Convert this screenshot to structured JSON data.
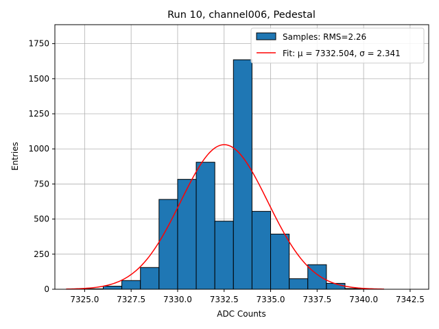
{
  "chart_data": {
    "type": "histogram",
    "title": "Run 10, channel006, Pedestal",
    "xlabel": "ADC Counts",
    "ylabel": "Entries",
    "xlim": [
      7323.4,
      7343.5
    ],
    "ylim": [
      0,
      1885
    ],
    "xticks": [
      7325.0,
      7327.5,
      7330.0,
      7332.5,
      7335.0,
      7337.5,
      7340.0,
      7342.5
    ],
    "xtick_labels": [
      "7325.0",
      "7327.5",
      "7330.0",
      "7332.5",
      "7335.0",
      "7337.5",
      "7340.0",
      "7342.5"
    ],
    "yticks": [
      0,
      250,
      500,
      750,
      1000,
      1250,
      1500,
      1750
    ],
    "ytick_labels": [
      "0",
      "250",
      "500",
      "750",
      "1000",
      "1250",
      "1500",
      "1750"
    ],
    "grid": true,
    "bar_color": "#1f77b4",
    "fit_color": "#ff0000",
    "bins": [
      {
        "x0": 7324.0,
        "x1": 7325.0,
        "value": 0
      },
      {
        "x0": 7325.0,
        "x1": 7326.0,
        "value": 3
      },
      {
        "x0": 7326.0,
        "x1": 7327.0,
        "value": 22
      },
      {
        "x0": 7327.0,
        "x1": 7328.0,
        "value": 62
      },
      {
        "x0": 7328.0,
        "x1": 7329.0,
        "value": 155
      },
      {
        "x0": 7329.0,
        "x1": 7330.0,
        "value": 640
      },
      {
        "x0": 7330.0,
        "x1": 7331.0,
        "value": 783
      },
      {
        "x0": 7331.0,
        "x1": 7332.0,
        "value": 905
      },
      {
        "x0": 7332.0,
        "x1": 7333.0,
        "value": 485
      },
      {
        "x0": 7333.0,
        "x1": 7334.0,
        "value": 1635
      },
      {
        "x0": 7334.0,
        "x1": 7335.0,
        "value": 555
      },
      {
        "x0": 7335.0,
        "x1": 7336.0,
        "value": 393
      },
      {
        "x0": 7336.0,
        "x1": 7337.0,
        "value": 75
      },
      {
        "x0": 7337.0,
        "x1": 7338.0,
        "value": 175
      },
      {
        "x0": 7338.0,
        "x1": 7339.0,
        "value": 42
      },
      {
        "x0": 7339.0,
        "x1": 7340.0,
        "value": 5
      },
      {
        "x0": 7340.0,
        "x1": 7341.0,
        "value": 0
      }
    ],
    "fit": {
      "mu": 7332.504,
      "sigma": 2.341,
      "amplitude": 1030,
      "x_range": [
        7324.0,
        7341.1
      ]
    },
    "legend": {
      "placement": "top-right",
      "entries": [
        {
          "kind": "patch",
          "label": "Samples: RMS=2.26"
        },
        {
          "kind": "line",
          "label": "Fit: μ = 7332.504, σ = 2.341"
        }
      ]
    }
  }
}
